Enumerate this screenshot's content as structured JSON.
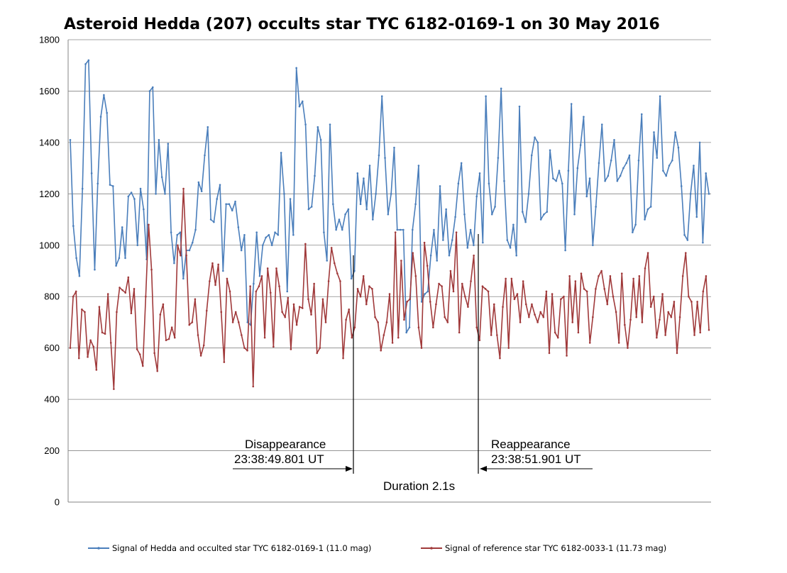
{
  "chart_data": {
    "type": "line",
    "title": "Asteroid Hedda (207) occults star TYC 6182-0169-1 on 30 May 2016",
    "xlabel": "",
    "ylabel": "",
    "ylim": [
      0,
      1800
    ],
    "yticks": [
      "0",
      "200",
      "400",
      "600",
      "800",
      "1000",
      "1200",
      "1400",
      "1600",
      "1800"
    ],
    "grid": "horizontal",
    "legend_position": "bottom",
    "series": [
      {
        "name": "Signal of Hedda and occulted star TYC 6182-0169-1 (11.0 mag)",
        "color": "#4a7ebb",
        "values": [
          1410,
          1075,
          950,
          880,
          1220,
          1705,
          1720,
          1280,
          905,
          1240,
          1500,
          1585,
          1515,
          1235,
          1230,
          920,
          950,
          1070,
          950,
          1190,
          1205,
          1180,
          1000,
          1220,
          1140,
          945,
          1600,
          1615,
          1200,
          1410,
          1265,
          1200,
          1395,
          1050,
          930,
          1040,
          1050,
          870,
          980,
          980,
          1010,
          1060,
          1245,
          1210,
          1350,
          1460,
          1100,
          1090,
          1180,
          1235,
          900,
          1160,
          1160,
          1135,
          1170,
          1070,
          980,
          1040,
          700,
          690,
          850,
          1050,
          880,
          1000,
          1030,
          1040,
          1000,
          1050,
          1040,
          1360,
          1200,
          820,
          1180,
          1040,
          1690,
          1540,
          1560,
          1470,
          1140,
          1150,
          1270,
          1460,
          1410,
          1050,
          940,
          1470,
          1160,
          1060,
          1100,
          1060,
          1120,
          1140,
          870,
          900,
          1280,
          1160,
          1260,
          1140,
          1310,
          1100,
          1200,
          1350,
          1580,
          1340,
          1120,
          1200,
          1380,
          1060,
          1060,
          1060,
          660,
          680,
          1060,
          1160,
          1310,
          780,
          810,
          820,
          960,
          1060,
          940,
          1230,
          1020,
          1140,
          960,
          1020,
          1110,
          1240,
          1320,
          1120,
          990,
          1060,
          1000,
          1190,
          1280,
          1010,
          1580,
          1240,
          1120,
          1150,
          1340,
          1610,
          1250,
          1020,
          990,
          1080,
          960,
          1540,
          1130,
          1090,
          1200,
          1350,
          1420,
          1400,
          1100,
          1120,
          1130,
          1370,
          1260,
          1250,
          1290,
          1240,
          980,
          1290,
          1550,
          1120,
          1300,
          1390,
          1500,
          1190,
          1260,
          1000,
          1150,
          1320,
          1470,
          1250,
          1270,
          1330,
          1410,
          1250,
          1270,
          1300,
          1320,
          1350,
          1050,
          1080,
          1330,
          1510,
          1100,
          1140,
          1150,
          1440,
          1340,
          1580,
          1290,
          1270,
          1310,
          1330,
          1440,
          1380,
          1230,
          1040,
          1020,
          1200,
          1310,
          1110,
          1400,
          1010,
          1280,
          1200
        ]
      },
      {
        "name": "Signal of reference star TYC 6182-0033-1 (11.73 mag)",
        "color": "#a0393a",
        "values": [
          600,
          800,
          820,
          560,
          750,
          740,
          565,
          630,
          605,
          515,
          760,
          660,
          655,
          810,
          620,
          440,
          740,
          835,
          825,
          815,
          875,
          735,
          830,
          595,
          575,
          530,
          800,
          1080,
          905,
          580,
          510,
          730,
          770,
          630,
          635,
          680,
          640,
          1000,
          960,
          1220,
          960,
          690,
          700,
          790,
          650,
          570,
          610,
          745,
          860,
          930,
          845,
          925,
          740,
          545,
          870,
          820,
          700,
          740,
          700,
          650,
          600,
          590,
          840,
          450,
          820,
          840,
          880,
          640,
          910,
          815,
          605,
          910,
          840,
          740,
          720,
          795,
          595,
          770,
          690,
          760,
          755,
          1005,
          790,
          730,
          850,
          580,
          600,
          790,
          700,
          860,
          990,
          930,
          890,
          860,
          560,
          710,
          750,
          640,
          680,
          830,
          800,
          880,
          770,
          840,
          830,
          720,
          700,
          590,
          650,
          700,
          810,
          620,
          1050,
          640,
          940,
          710,
          780,
          790,
          970,
          880,
          680,
          600,
          1010,
          920,
          780,
          680,
          770,
          850,
          840,
          720,
          700,
          900,
          820,
          1050,
          660,
          850,
          800,
          760,
          860,
          960,
          680,
          630,
          840,
          830,
          820,
          650,
          770,
          650,
          560,
          760,
          870,
          600,
          870,
          790,
          810,
          700,
          860,
          770,
          720,
          770,
          730,
          700,
          740,
          720,
          820,
          580,
          810,
          660,
          640,
          790,
          800,
          570,
          880,
          700,
          860,
          660,
          890,
          830,
          820,
          620,
          720,
          830,
          880,
          900,
          830,
          770,
          880,
          800,
          740,
          620,
          890,
          690,
          600,
          710,
          870,
          720,
          880,
          700,
          910,
          970,
          760,
          800,
          640,
          710,
          810,
          650,
          740,
          720,
          780,
          580,
          720,
          880,
          970,
          800,
          780,
          650,
          780,
          660,
          820,
          880,
          670
        ]
      }
    ],
    "annotations": [
      {
        "line1": "Disappearance",
        "line2": "23:38:49.801 UT"
      },
      {
        "line1": "Reappearance",
        "line2": "23:38:51.901 UT"
      },
      {
        "text": "Duration 2.1s"
      }
    ]
  }
}
